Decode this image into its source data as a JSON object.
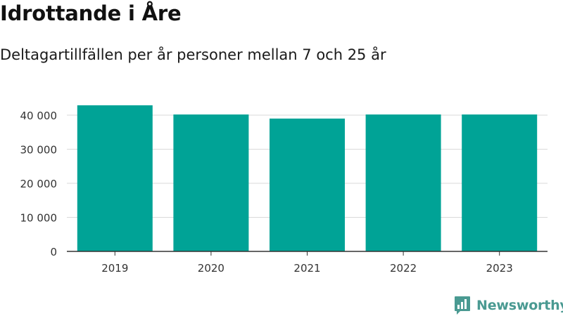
{
  "header": {
    "title": "Idrottande i Åre",
    "subtitle": "Deltagartillfällen per år personer mellan 7 och 25 år"
  },
  "brand": {
    "name": "Newsworthy",
    "icon": "newsworthy-logo-icon",
    "color": "#4a9a92"
  },
  "chart_data": {
    "type": "bar",
    "categories": [
      "2019",
      "2020",
      "2021",
      "2022",
      "2023"
    ],
    "values": [
      42900,
      40200,
      39000,
      40200,
      40200
    ],
    "y_ticks": [
      0,
      10000,
      20000,
      30000,
      40000
    ],
    "y_tick_labels": [
      "0",
      "10 000",
      "20 000",
      "30 000",
      "40 000"
    ],
    "ylim": [
      0,
      45000
    ],
    "bar_color": "#00a396",
    "grid": true
  }
}
